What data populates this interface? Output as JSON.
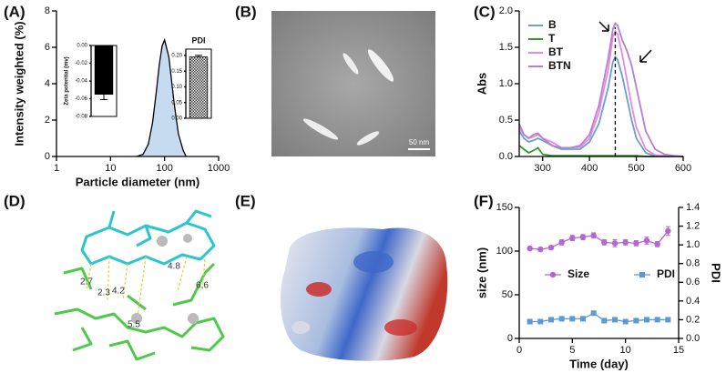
{
  "panel_labels": [
    "(A)",
    "(B)",
    "(C)",
    "(D)",
    "(E)",
    "(F)"
  ],
  "images": {
    "tem_scale_bar": "50 nm",
    "docking_distances": [
      2.7,
      2.3,
      4.2,
      5.5,
      4.8,
      6.6
    ]
  },
  "chart_data": [
    {
      "type": "area",
      "xlabel": "Particle diameter (nm)",
      "ylabel": "Intensity weighted (%)",
      "xlog": true,
      "x": [
        30,
        40,
        50,
        60,
        70,
        80,
        90,
        100,
        120,
        150,
        180,
        220,
        250
      ],
      "values": [
        0,
        0.12,
        0.67,
        1.87,
        3.51,
        5.06,
        6.07,
        6.4,
        5.47,
        2.95,
        1.25,
        0.35,
        0
      ],
      "color": "#c6dbf0",
      "xlim": [
        1,
        1000
      ],
      "xticks": [
        1,
        10,
        100,
        1000
      ],
      "ylim": [
        0,
        8
      ],
      "yticks": [
        0,
        2,
        4,
        6,
        8
      ]
    },
    {
      "type": "bar",
      "ylabel": "Zeta potential (mv)",
      "values": [
        -0.055
      ],
      "errors": [
        0.006
      ],
      "color": "#000000",
      "ylim": [
        -0.08,
        0
      ],
      "yticks": [
        {
          "value": 0,
          "label": "0.00"
        },
        -0.02,
        -0.04,
        -0.06,
        -0.08
      ]
    },
    {
      "type": "bar",
      "title": "PDI",
      "values": [
        0.195
      ],
      "errors": [
        0.005
      ],
      "color": "#888888",
      "ylim": [
        0,
        0.22
      ],
      "yticks": [
        {
          "value": 0,
          "label": "0.00"
        },
        0.05,
        {
          "value": 0.1,
          "label": "0.10"
        },
        0.15,
        {
          "value": 0.2,
          "label": "0.20"
        }
      ]
    },
    {
      "type": "line",
      "ylabel": "Abs",
      "legend": "upper left",
      "vline": 455,
      "x": [
        250,
        260,
        270,
        280,
        290,
        300,
        320,
        340,
        360,
        380,
        400,
        420,
        440,
        450,
        455,
        460,
        470,
        480,
        490,
        500,
        520,
        540,
        560,
        580,
        600
      ],
      "series": [
        {
          "name": "B",
          "color": "#6a9fd4",
          "values": [
            0.35,
            0.25,
            0.2,
            0.22,
            0.25,
            0.22,
            0.15,
            0.1,
            0.1,
            0.1,
            0.2,
            0.45,
            0.95,
            1.3,
            1.37,
            1.33,
            1.1,
            0.8,
            0.5,
            0.25,
            0.05,
            0.01,
            0.01,
            0,
            0
          ]
        },
        {
          "name": "T",
          "color": "#2e9a2e",
          "values": [
            0.15,
            0.1,
            0.05,
            0.08,
            0.12,
            0.03,
            0.01,
            0.01,
            0.01,
            0.01,
            0.01,
            0.01,
            0.01,
            0.01,
            0.01,
            0.01,
            0.01,
            0.01,
            0.01,
            0.01,
            0,
            0,
            0,
            0,
            0
          ]
        },
        {
          "name": "BT",
          "color": "#e88ad8",
          "values": [
            0.4,
            0.3,
            0.25,
            0.27,
            0.3,
            0.25,
            0.2,
            0.12,
            0.12,
            0.13,
            0.25,
            0.6,
            1.2,
            1.65,
            1.72,
            1.68,
            1.4,
            1.05,
            0.7,
            0.4,
            0.1,
            0.02,
            0.01,
            0,
            0
          ]
        },
        {
          "name": "BTN",
          "color": "#b57fd6",
          "values": [
            0.45,
            0.3,
            0.25,
            0.3,
            0.32,
            0.25,
            0.15,
            0.12,
            0.12,
            0.15,
            0.3,
            0.7,
            1.35,
            1.75,
            1.83,
            1.8,
            1.6,
            1.45,
            1.25,
            0.95,
            0.35,
            0.1,
            0.03,
            0.01,
            0
          ]
        }
      ],
      "xlim": [
        250,
        600
      ],
      "xticks": [
        300,
        400,
        500,
        600
      ],
      "ylim": [
        0,
        2
      ],
      "yticks": [
        {
          "value": 0,
          "label": "0.0"
        },
        0.5,
        {
          "value": 1,
          "label": "1.0"
        },
        1.5,
        {
          "value": 2,
          "label": "2.0"
        }
      ]
    },
    {
      "type": "line",
      "xlabel": "Time (day)",
      "ylabel": "size (nm)",
      "y2label": "PDI",
      "legend": "center",
      "markers": true,
      "x": [
        1,
        2,
        3,
        4,
        5,
        6,
        7,
        8,
        9,
        10,
        11,
        12,
        13,
        14
      ],
      "series": [
        {
          "name": "Size",
          "color": "#b565d4",
          "values": [
            103,
            102,
            104,
            110,
            115,
            116,
            118,
            110,
            109,
            110,
            109,
            112,
            108,
            123
          ],
          "errors": [
            2,
            2,
            2,
            3,
            3,
            3,
            3,
            3,
            4,
            3,
            3,
            4,
            3,
            5
          ]
        },
        {
          "name": "PDI",
          "color": "#5b9bd5",
          "axis": "y2",
          "values": [
            0.18,
            0.18,
            0.2,
            0.21,
            0.21,
            0.21,
            0.27,
            0.19,
            0.2,
            0.18,
            0.19,
            0.2,
            0.2,
            0.2
          ],
          "errors": [
            0.02,
            0.02,
            0.02,
            0.02,
            0.02,
            0.02,
            0.02,
            0.02,
            0.02,
            0.02,
            0.02,
            0.02,
            0.02,
            0.02
          ]
        }
      ],
      "xlim": [
        0,
        15
      ],
      "xticks": [
        0,
        5,
        10,
        15
      ],
      "ylim": [
        0,
        150
      ],
      "yticks": [
        0,
        50,
        100,
        150
      ],
      "y2lim": [
        0,
        1.4
      ],
      "y2ticks": [
        {
          "value": 0,
          "label": "0.0"
        },
        0.2,
        0.4,
        0.6,
        0.8,
        {
          "value": 1,
          "label": "1.0"
        },
        1.2,
        1.4
      ]
    }
  ]
}
